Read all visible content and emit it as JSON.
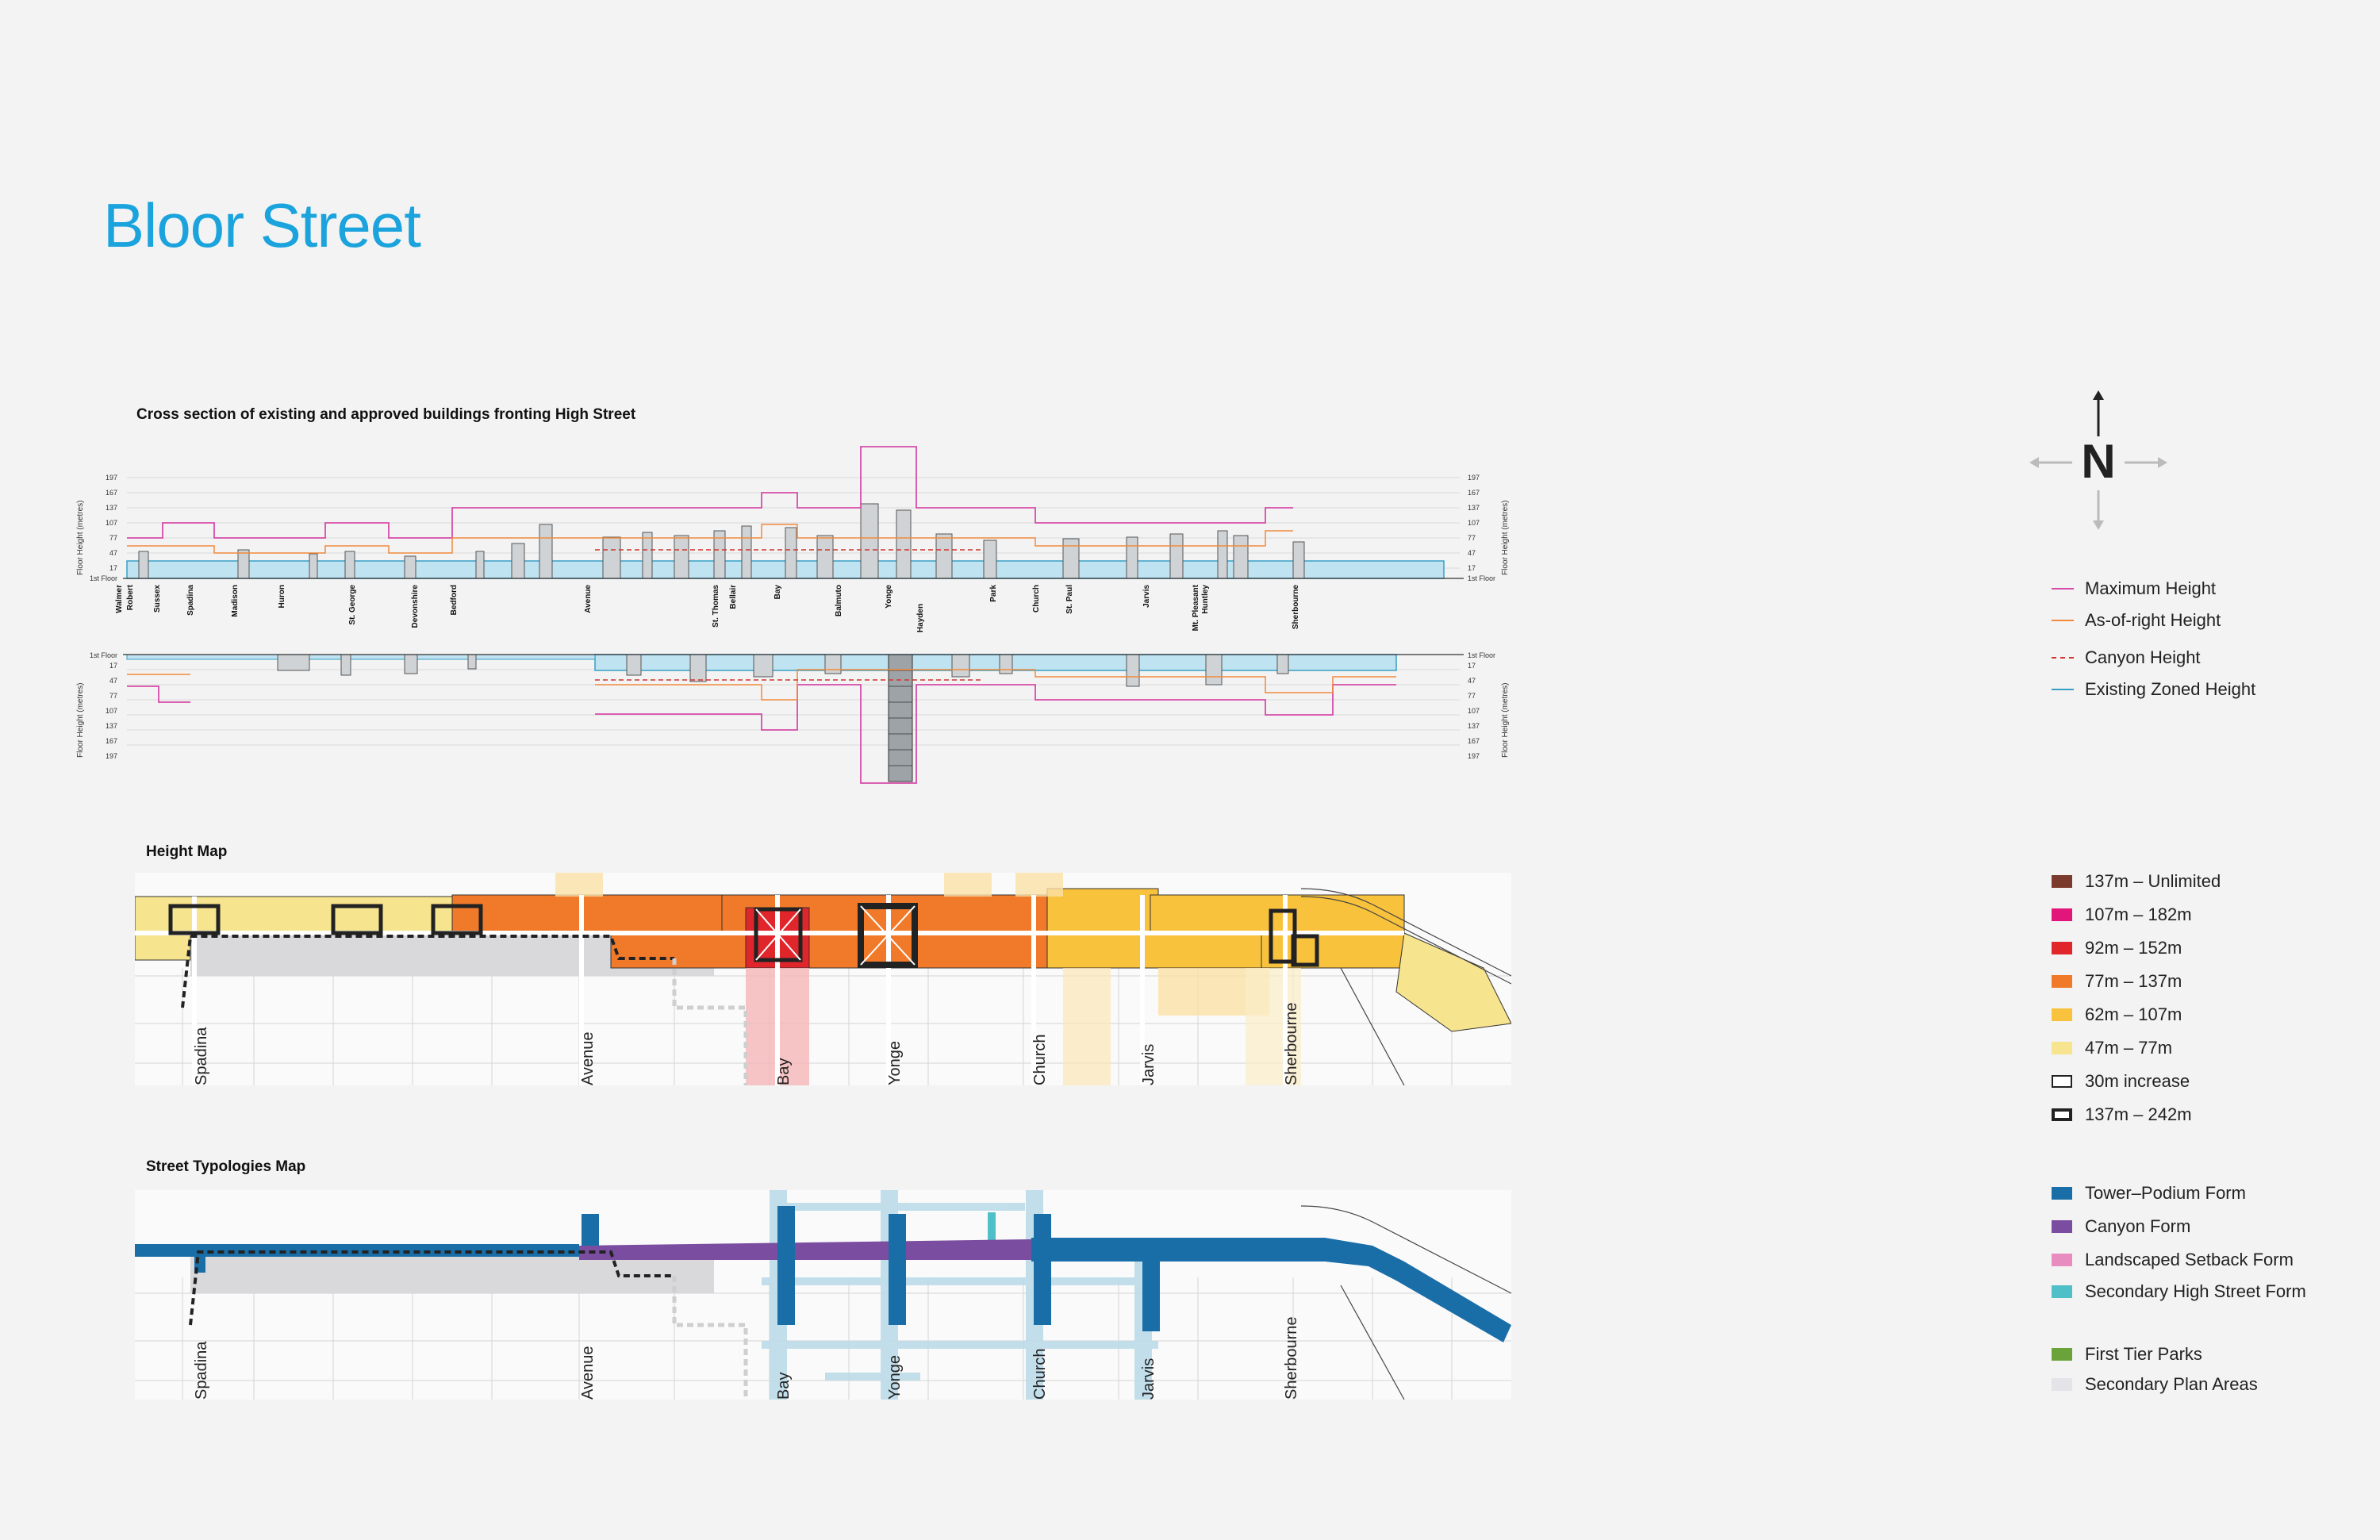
{
  "page_title": "Bloor Street",
  "cross_section": {
    "title": "Cross section of existing and approved buildings fronting High Street",
    "axis_label": "Floor Height  (metres)",
    "ticks": [
      "197",
      "167",
      "137",
      "107",
      "77",
      "47",
      "17",
      "1st Floor"
    ],
    "north_streets": [
      "Walmer",
      "Robert",
      "Sussex",
      "Spadina",
      "Madison",
      "Huron",
      "St. George",
      "Devonshire",
      "Bedford",
      "Avenue",
      "St. Thomas",
      "Bellair",
      "Bay",
      "Balmuto",
      "Yonge",
      "Park",
      "Church",
      "St. Paul",
      "Jarvis",
      "Mt. Pleasant",
      "Huntley",
      "Sherbourne"
    ],
    "south_streets": [
      "Hayden"
    ]
  },
  "height_map": {
    "title": "Height Map",
    "street_labels": [
      "Spadina",
      "Avenue",
      "Bay",
      "Yonge",
      "Church",
      "Jarvis",
      "Sherbourne"
    ]
  },
  "typology_map": {
    "title": "Street Typologies Map",
    "street_labels": [
      "Spadina",
      "Avenue",
      "Bay",
      "Yonge",
      "Church",
      "Jarvis",
      "Sherbourne"
    ]
  },
  "compass": {
    "letter": "N",
    "icon": "north-arrow-icon"
  },
  "legend_heights": [
    {
      "label": "Maximum Height",
      "color": "#d64ba8",
      "style": "solid"
    },
    {
      "label": "As-of-right Height",
      "color": "#f08a3c",
      "style": "solid"
    },
    {
      "label": "Canyon Height",
      "color": "#d0342c",
      "style": "dashed"
    },
    {
      "label": "Existing Zoned Height",
      "color": "#3a9fc4",
      "style": "solid"
    }
  ],
  "legend_heightmap": [
    {
      "label": "137m – Unlimited",
      "color": "#7a3a2c",
      "type": "fill"
    },
    {
      "label": "107m – 182m",
      "color": "#e2157a",
      "type": "fill"
    },
    {
      "label": "92m – 152m",
      "color": "#e0262b",
      "type": "fill"
    },
    {
      "label": "77m – 137m",
      "color": "#f07a2a",
      "type": "fill"
    },
    {
      "label": "62m – 107m",
      "color": "#f9c23c",
      "type": "fill"
    },
    {
      "label": "47m – 77m",
      "color": "#f6e48e",
      "type": "fill"
    },
    {
      "label": "30m increase",
      "color": "#222222",
      "type": "outline-thin"
    },
    {
      "label": "137m – 242m",
      "color": "#222222",
      "type": "outline-thick"
    }
  ],
  "legend_typologies": [
    {
      "label": "Tower–Podium Form",
      "color": "#1a6ea8"
    },
    {
      "label": "Canyon Form",
      "color": "#7a4da0"
    },
    {
      "label": "Landscaped Setback Form",
      "color": "#e88bbf"
    },
    {
      "label": "Secondary High Street Form",
      "color": "#4fc0c8"
    }
  ],
  "legend_other": [
    {
      "label": "First Tier Parks",
      "color": "#6aa33a"
    },
    {
      "label": "Secondary Plan Areas",
      "color": "#e3e3e8"
    }
  ]
}
